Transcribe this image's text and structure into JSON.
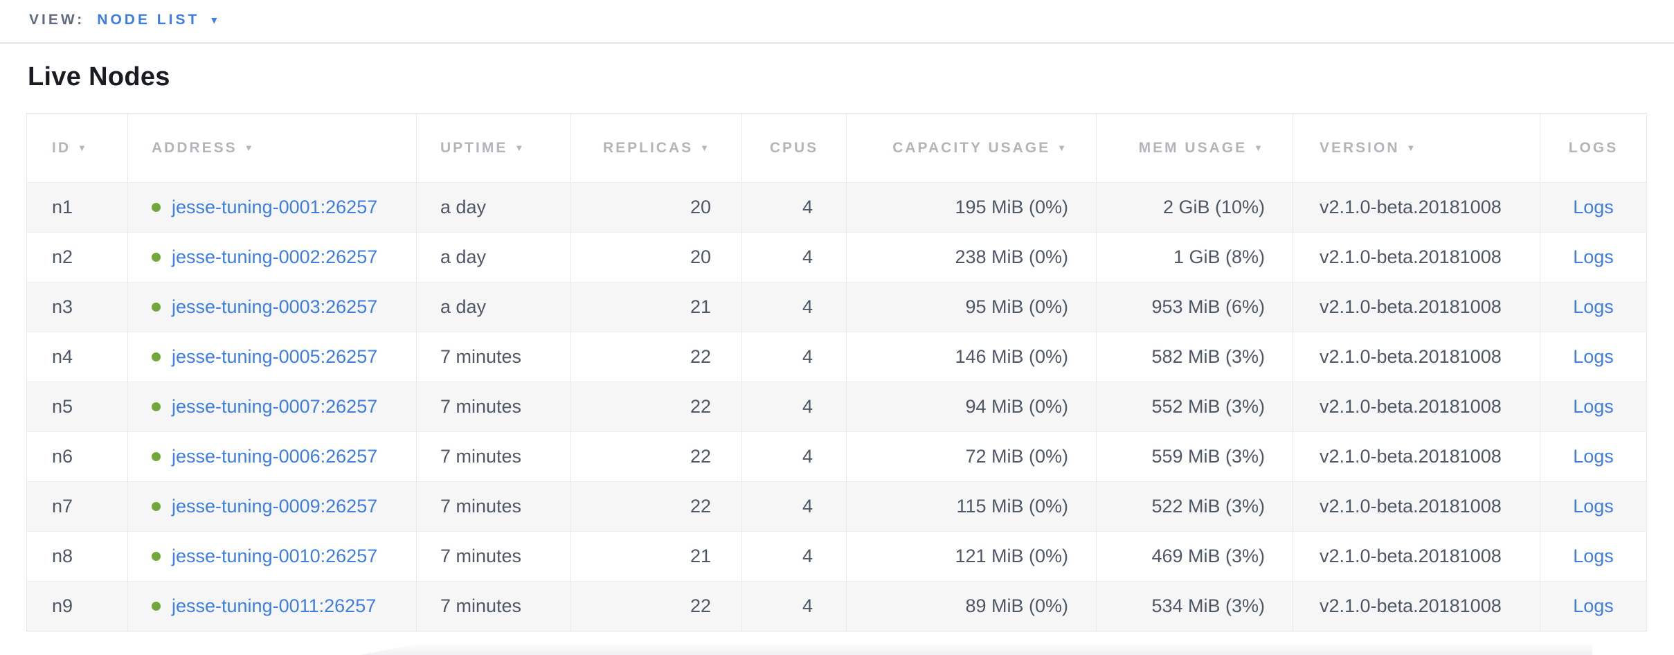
{
  "view_bar": {
    "label": "VIEW:",
    "selected": "NODE LIST",
    "dropdown_icon": "chevron-down-icon"
  },
  "page": {
    "title": "Live Nodes"
  },
  "table": {
    "columns": [
      {
        "key": "id",
        "label": "ID",
        "sortable": true
      },
      {
        "key": "address",
        "label": "ADDRESS",
        "sortable": true
      },
      {
        "key": "uptime",
        "label": "UPTIME",
        "sortable": true
      },
      {
        "key": "replicas",
        "label": "REPLICAS",
        "sortable": true
      },
      {
        "key": "cpus",
        "label": "CPUS",
        "sortable": false
      },
      {
        "key": "capacity_usage",
        "label": "CAPACITY USAGE",
        "sortable": true
      },
      {
        "key": "mem_usage",
        "label": "MEM USAGE",
        "sortable": true
      },
      {
        "key": "version",
        "label": "VERSION",
        "sortable": true
      },
      {
        "key": "logs",
        "label": "LOGS",
        "sortable": false
      }
    ],
    "sort_icon": "▼",
    "rows": [
      {
        "id": "n1",
        "status": "healthy",
        "address": "jesse-tuning-0001:26257",
        "uptime": "a day",
        "replicas": "20",
        "cpus": "4",
        "capacity_usage": "195 MiB (0%)",
        "mem_usage": "2 GiB (10%)",
        "version": "v2.1.0-beta.20181008",
        "logs_label": "Logs"
      },
      {
        "id": "n2",
        "status": "healthy",
        "address": "jesse-tuning-0002:26257",
        "uptime": "a day",
        "replicas": "20",
        "cpus": "4",
        "capacity_usage": "238 MiB (0%)",
        "mem_usage": "1 GiB (8%)",
        "version": "v2.1.0-beta.20181008",
        "logs_label": "Logs"
      },
      {
        "id": "n3",
        "status": "healthy",
        "address": "jesse-tuning-0003:26257",
        "uptime": "a day",
        "replicas": "21",
        "cpus": "4",
        "capacity_usage": "95 MiB (0%)",
        "mem_usage": "953 MiB (6%)",
        "version": "v2.1.0-beta.20181008",
        "logs_label": "Logs"
      },
      {
        "id": "n4",
        "status": "healthy",
        "address": "jesse-tuning-0005:26257",
        "uptime": "7 minutes",
        "replicas": "22",
        "cpus": "4",
        "capacity_usage": "146 MiB (0%)",
        "mem_usage": "582 MiB (3%)",
        "version": "v2.1.0-beta.20181008",
        "logs_label": "Logs"
      },
      {
        "id": "n5",
        "status": "healthy",
        "address": "jesse-tuning-0007:26257",
        "uptime": "7 minutes",
        "replicas": "22",
        "cpus": "4",
        "capacity_usage": "94 MiB (0%)",
        "mem_usage": "552 MiB (3%)",
        "version": "v2.1.0-beta.20181008",
        "logs_label": "Logs"
      },
      {
        "id": "n6",
        "status": "healthy",
        "address": "jesse-tuning-0006:26257",
        "uptime": "7 minutes",
        "replicas": "22",
        "cpus": "4",
        "capacity_usage": "72 MiB (0%)",
        "mem_usage": "559 MiB (3%)",
        "version": "v2.1.0-beta.20181008",
        "logs_label": "Logs"
      },
      {
        "id": "n7",
        "status": "healthy",
        "address": "jesse-tuning-0009:26257",
        "uptime": "7 minutes",
        "replicas": "22",
        "cpus": "4",
        "capacity_usage": "115 MiB (0%)",
        "mem_usage": "522 MiB (3%)",
        "version": "v2.1.0-beta.20181008",
        "logs_label": "Logs"
      },
      {
        "id": "n8",
        "status": "healthy",
        "address": "jesse-tuning-0010:26257",
        "uptime": "7 minutes",
        "replicas": "21",
        "cpus": "4",
        "capacity_usage": "121 MiB (0%)",
        "mem_usage": "469 MiB (3%)",
        "version": "v2.1.0-beta.20181008",
        "logs_label": "Logs"
      },
      {
        "id": "n9",
        "status": "healthy",
        "address": "jesse-tuning-0011:26257",
        "uptime": "7 minutes",
        "replicas": "22",
        "cpus": "4",
        "capacity_usage": "89 MiB (0%)",
        "mem_usage": "534 MiB (3%)",
        "version": "v2.1.0-beta.20181008",
        "logs_label": "Logs"
      }
    ]
  },
  "colors": {
    "accent_blue": "#3f7de4",
    "link_blue": "#3e7de2",
    "healthy_green": "#72a838",
    "header_gray": "#b2b5ba",
    "body_slate": "#4d5766",
    "row_stripe": "#f6f6f6",
    "border": "#e9e9ea"
  }
}
